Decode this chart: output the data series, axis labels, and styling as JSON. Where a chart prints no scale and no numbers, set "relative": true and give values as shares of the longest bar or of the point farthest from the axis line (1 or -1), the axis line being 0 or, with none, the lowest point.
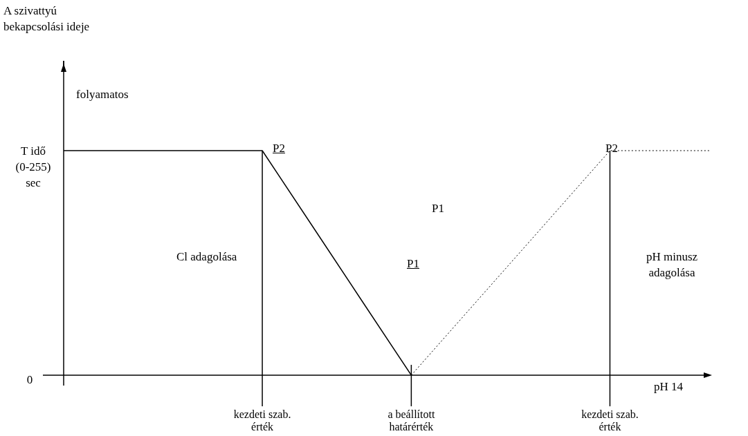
{
  "chart_data": {
    "type": "line",
    "relative": true,
    "xlabel": "pH 14",
    "categories": [
      null,
      null,
      null,
      null,
      "kezdeti szab. érték",
      null,
      null,
      "a beállított határérték",
      null,
      null,
      null,
      "kezdeti szab. érték",
      null,
      null
    ],
    "series": [
      {
        "color": "#000000",
        "line_style": "solid",
        "values": [
          1,
          1,
          1,
          1,
          1,
          0.667,
          0.333,
          0,
          null,
          null,
          null,
          null,
          null,
          null
        ]
      },
      {
        "color": "#000000",
        "line_style": "dotted",
        "values": [
          null,
          null,
          null,
          null,
          null,
          null,
          null,
          0,
          0.25,
          0.5,
          0.75,
          1,
          1,
          1
        ]
      }
    ],
    "marker": "none",
    "legend": false,
    "grid": "x",
    "annotations": [
      "A szivattyú bekapcsolási ideje",
      "folyamatos",
      "P2",
      "P2",
      "P1",
      "P1",
      "Cl adagolása",
      "pH minusz adagolása",
      "T idő (0-255) sec",
      "0"
    ]
  }
}
